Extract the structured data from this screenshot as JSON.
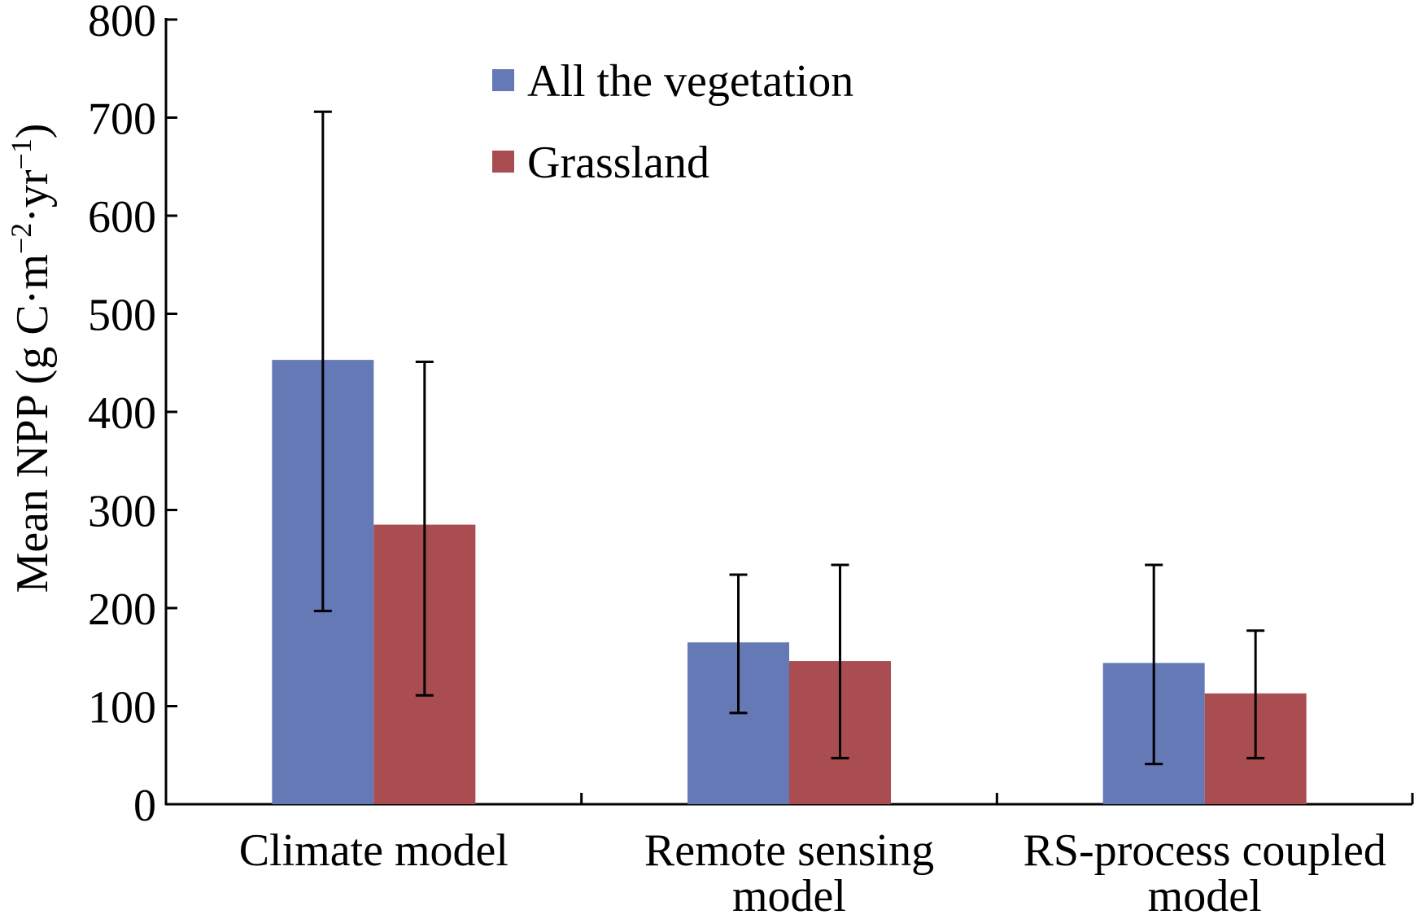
{
  "chart_data": {
    "type": "bar",
    "title": "",
    "xlabel": "",
    "ylabel": "Mean NPP (g C·m",
    "ylabel_sup1": "−2",
    "ylabel_mid": "·yr",
    "ylabel_sup2": "−1",
    "ylabel_end": ")",
    "ylim": [
      0,
      800
    ],
    "yticks": [
      0,
      100,
      200,
      300,
      400,
      500,
      600,
      700,
      800
    ],
    "grid": false,
    "legend_position": "top-center",
    "categories": [
      [
        "Climate model"
      ],
      [
        "Remote sensing",
        "model"
      ],
      [
        "RS-process coupled",
        "model"
      ]
    ],
    "series": [
      {
        "name": "All the vegetation",
        "color": "#6479b6",
        "values": [
          453,
          165,
          144
        ],
        "error_low": [
          197,
          93,
          41
        ],
        "error_high": [
          706,
          234,
          244
        ]
      },
      {
        "name": "Grassland",
        "color": "#aa4d50",
        "values": [
          285,
          146,
          113
        ],
        "error_low": [
          111,
          47,
          47
        ],
        "error_high": [
          451,
          244,
          177
        ]
      }
    ]
  }
}
